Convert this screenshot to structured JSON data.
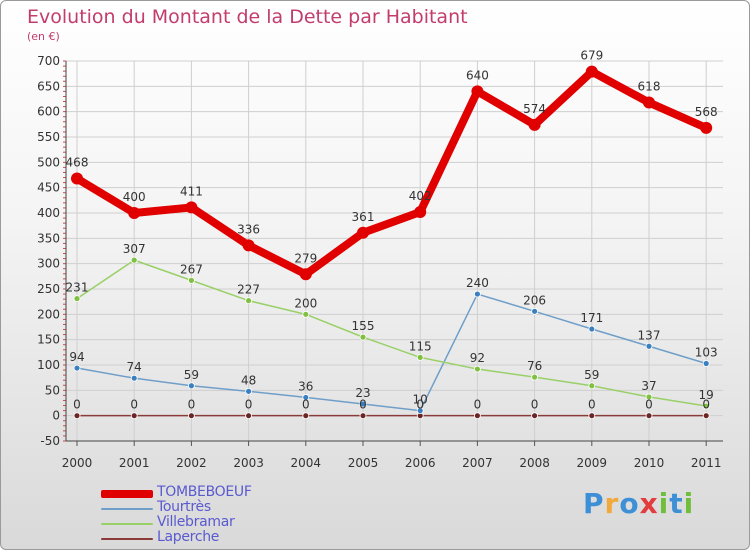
{
  "chart_data": {
    "type": "line",
    "title": "Evolution du Montant de la Dette par Habitant",
    "unit_label": "(en €)",
    "x": [
      "2000",
      "2001",
      "2002",
      "2003",
      "2004",
      "2005",
      "2006",
      "2007",
      "2008",
      "2009",
      "2010",
      "2011"
    ],
    "ylim": [
      -50,
      700
    ],
    "y_ticks": [
      -50,
      0,
      50,
      100,
      150,
      200,
      250,
      300,
      350,
      400,
      450,
      500,
      550,
      600,
      650,
      700
    ],
    "grid": true,
    "legend_position": "bottom-left",
    "series": [
      {
        "name": "TOMBEBOEUF",
        "color": "#e00000",
        "width": 8,
        "values": [
          468,
          400,
          411,
          336,
          279,
          361,
          402,
          640,
          574,
          679,
          618,
          568
        ],
        "labels": [
          "468",
          "400",
          "411",
          "336",
          "279",
          "361",
          "402",
          "640",
          "574",
          "679",
          "618",
          "568"
        ]
      },
      {
        "name": "Tourtrès",
        "color": "#6f9fc9",
        "width": 1.5,
        "values": [
          94,
          74,
          59,
          48,
          36,
          23,
          10,
          240,
          206,
          171,
          137,
          103
        ],
        "labels": [
          "94",
          "74",
          "59",
          "48",
          "36",
          "23",
          "10",
          "240",
          "206",
          "171",
          "137",
          "103"
        ]
      },
      {
        "name": "Villebramar",
        "color": "#99d068",
        "width": 1.5,
        "values": [
          231,
          307,
          267,
          227,
          200,
          155,
          115,
          92,
          76,
          59,
          37,
          19
        ],
        "labels": [
          "231",
          "307",
          "267",
          "227",
          "200",
          "155",
          "115",
          "92",
          "76",
          "59",
          "37",
          "19"
        ]
      },
      {
        "name": "Laperche",
        "color": "#8b3a3a",
        "width": 1.5,
        "values": [
          0,
          0,
          0,
          0,
          0,
          0,
          0,
          0,
          0,
          0,
          0,
          0
        ],
        "labels": [
          "0",
          "0",
          "0",
          "0",
          "0",
          "0",
          "0",
          "0",
          "0",
          "0",
          "0",
          "0"
        ]
      }
    ]
  },
  "logo": {
    "letters": [
      "P",
      "r",
      "o",
      "x",
      "i",
      "t",
      "i"
    ],
    "colors": [
      "#3d8fd6",
      "#f2a93b",
      "#3d8fd6",
      "#e23c3c",
      "#6fbf3c",
      "#3d8fd6",
      "#6fbf3c"
    ]
  }
}
